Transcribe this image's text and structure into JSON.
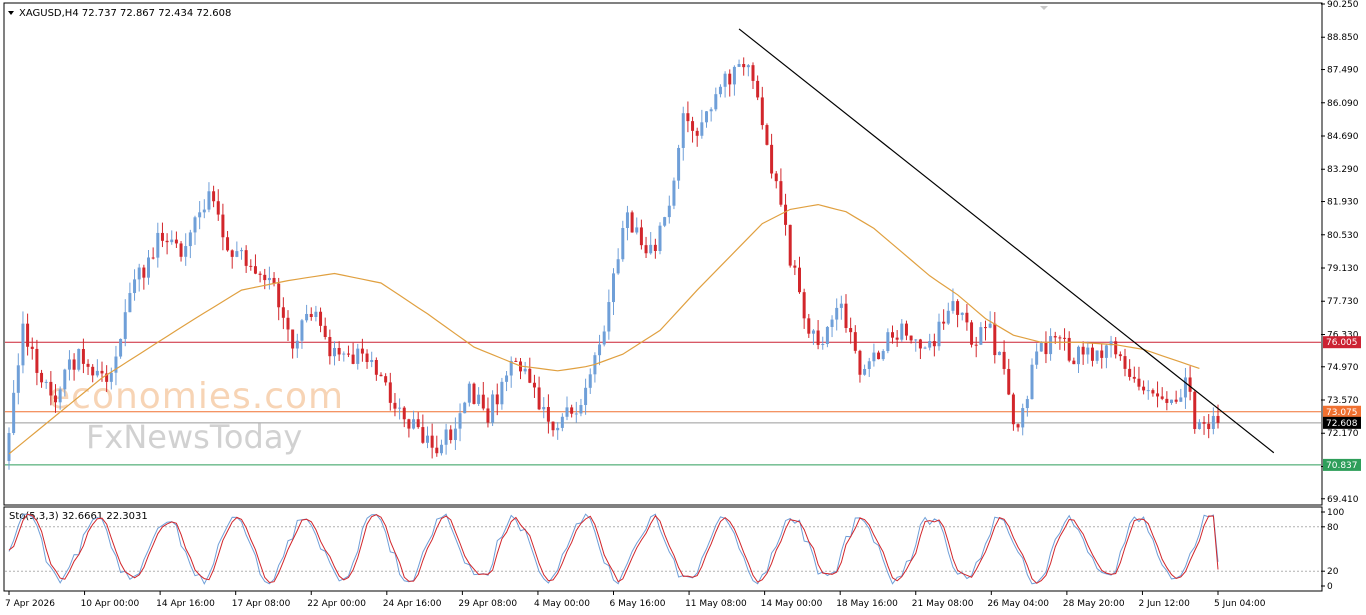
{
  "header": {
    "symbol_line": "XAGUSD,H4  72.737 72.867 72.434 72.608"
  },
  "stochastic_header": "Sto(5,3,3) 32.6661 22.3031",
  "watermark": {
    "brand_top": "economies.com",
    "brand_bottom": "FxNewsToday"
  },
  "colors": {
    "bull": "#6f9fd8",
    "bear": "#d2262b",
    "ma": "#e0a040",
    "resistance": "#cc2233",
    "support_mid": "#f07030",
    "support_low": "#2e9e5a",
    "current": "#000000",
    "stoch_main": "#6f9fd8",
    "stoch_signal": "#d2262b",
    "trendline": "#000000"
  },
  "chart_data": {
    "type": "candlestick",
    "symbol": "XAGUSD",
    "timeframe": "H4",
    "y_ticks": [
      "90.250",
      "88.850",
      "87.490",
      "86.090",
      "84.690",
      "83.290",
      "81.930",
      "80.530",
      "79.130",
      "77.730",
      "76.330",
      "74.970",
      "73.570",
      "72.170",
      "70.770",
      "69.410"
    ],
    "ylim": [
      69.19,
      90.25
    ],
    "x_ticks": [
      "7 Apr 2026",
      "10 Apr 00:00",
      "14 Apr 16:00",
      "17 Apr 08:00",
      "22 Apr 00:00",
      "24 Apr 16:00",
      "29 Apr 08:00",
      "4 May 00:00",
      "6 May 16:00",
      "11 May 08:00",
      "14 May 00:00",
      "18 May 16:00",
      "21 May 08:00",
      "26 May 04:00",
      "28 May 20:00",
      "2 Jun 12:00",
      "5 Jun 04:00"
    ],
    "price_path": [
      [
        0,
        71.0
      ],
      [
        4,
        76.5
      ],
      [
        10,
        73.5
      ],
      [
        16,
        75.5
      ],
      [
        22,
        74.5
      ],
      [
        28,
        78.5
      ],
      [
        34,
        80.5
      ],
      [
        38,
        79.5
      ],
      [
        44,
        82.2
      ],
      [
        48,
        80.0
      ],
      [
        54,
        79.0
      ],
      [
        58,
        78.5
      ],
      [
        62,
        76.0
      ],
      [
        66,
        77.5
      ],
      [
        70,
        75.5
      ],
      [
        76,
        75.5
      ],
      [
        80,
        75.0
      ],
      [
        84,
        73.5
      ],
      [
        88,
        72.5
      ],
      [
        94,
        71.5
      ],
      [
        100,
        74.0
      ],
      [
        104,
        73.0
      ],
      [
        110,
        75.5
      ],
      [
        114,
        74.0
      ],
      [
        118,
        72.5
      ],
      [
        124,
        73.5
      ],
      [
        130,
        77.5
      ],
      [
        134,
        81.5
      ],
      [
        138,
        79.5
      ],
      [
        142,
        81.0
      ],
      [
        146,
        85.5
      ],
      [
        150,
        85.0
      ],
      [
        154,
        86.5
      ],
      [
        158,
        88.0
      ],
      [
        160,
        87.5
      ],
      [
        164,
        84.5
      ],
      [
        168,
        80.5
      ],
      [
        172,
        77.0
      ],
      [
        176,
        76.0
      ],
      [
        180,
        77.5
      ],
      [
        184,
        74.5
      ],
      [
        188,
        75.5
      ],
      [
        192,
        76.5
      ],
      [
        196,
        76.0
      ],
      [
        200,
        76.0
      ],
      [
        204,
        78.0
      ],
      [
        208,
        76.0
      ],
      [
        212,
        76.5
      ],
      [
        216,
        74.0
      ],
      [
        218,
        72.0
      ],
      [
        222,
        75.5
      ],
      [
        226,
        76.0
      ],
      [
        230,
        75.5
      ],
      [
        234,
        75.5
      ],
      [
        238,
        76.0
      ],
      [
        242,
        74.5
      ],
      [
        246,
        74.0
      ],
      [
        250,
        73.0
      ],
      [
        254,
        74.5
      ],
      [
        256,
        72.5
      ],
      [
        260,
        72.6
      ]
    ],
    "ma_path": [
      [
        0,
        71.3
      ],
      [
        20,
        74.5
      ],
      [
        40,
        77.0
      ],
      [
        50,
        78.2
      ],
      [
        60,
        78.6
      ],
      [
        70,
        78.9
      ],
      [
        80,
        78.5
      ],
      [
        90,
        77.2
      ],
      [
        100,
        75.8
      ],
      [
        110,
        75.0
      ],
      [
        118,
        74.8
      ],
      [
        125,
        75.0
      ],
      [
        132,
        75.5
      ],
      [
        140,
        76.5
      ],
      [
        148,
        78.2
      ],
      [
        156,
        79.8
      ],
      [
        162,
        81.0
      ],
      [
        168,
        81.6
      ],
      [
        174,
        81.8
      ],
      [
        180,
        81.5
      ],
      [
        186,
        80.8
      ],
      [
        192,
        79.8
      ],
      [
        198,
        78.8
      ],
      [
        204,
        78.0
      ],
      [
        210,
        77.0
      ],
      [
        216,
        76.3
      ],
      [
        222,
        76.0
      ],
      [
        230,
        76.0
      ],
      [
        238,
        75.9
      ],
      [
        244,
        75.7
      ],
      [
        250,
        75.3
      ],
      [
        256,
        74.9
      ]
    ],
    "trendline": {
      "from": [
        157,
        89.2
      ],
      "to": [
        272,
        71.35
      ]
    },
    "horizontal_levels": [
      {
        "label": "76.005",
        "value": 76.005,
        "role": "resistance"
      },
      {
        "label": "73.075",
        "value": 73.075,
        "role": "support_mid"
      },
      {
        "label": "70.837",
        "value": 70.837,
        "role": "support_low"
      },
      {
        "label": "72.608",
        "value": 72.608,
        "role": "current"
      }
    ],
    "stochastic": {
      "k": 32.6661,
      "d": 22.3031,
      "ylim": [
        0,
        100
      ],
      "y_ticks": [
        "100",
        "80",
        "20",
        "0"
      ],
      "levels": [
        80,
        20
      ]
    }
  }
}
